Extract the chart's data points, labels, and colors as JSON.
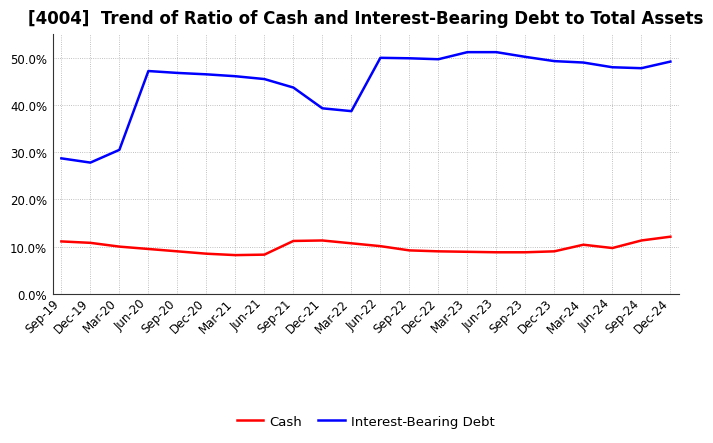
{
  "title": "[4004]  Trend of Ratio of Cash and Interest-Bearing Debt to Total Assets",
  "x_labels": [
    "Sep-19",
    "Dec-19",
    "Mar-20",
    "Jun-20",
    "Sep-20",
    "Dec-20",
    "Mar-21",
    "Jun-21",
    "Sep-21",
    "Dec-21",
    "Mar-22",
    "Jun-22",
    "Sep-22",
    "Dec-22",
    "Mar-23",
    "Jun-23",
    "Sep-23",
    "Dec-23",
    "Mar-24",
    "Jun-24",
    "Sep-24",
    "Dec-24"
  ],
  "cash": [
    0.111,
    0.108,
    0.1,
    0.095,
    0.09,
    0.085,
    0.082,
    0.083,
    0.112,
    0.113,
    0.107,
    0.101,
    0.092,
    0.09,
    0.089,
    0.088,
    0.088,
    0.09,
    0.104,
    0.097,
    0.113,
    0.121
  ],
  "ibd": [
    0.287,
    0.278,
    0.305,
    0.472,
    0.468,
    0.465,
    0.461,
    0.455,
    0.437,
    0.393,
    0.387,
    0.5,
    0.499,
    0.497,
    0.512,
    0.512,
    0.502,
    0.493,
    0.49,
    0.48,
    0.478,
    0.492
  ],
  "cash_color": "#ff0000",
  "ibd_color": "#0000ff",
  "bg_color": "#ffffff",
  "plot_bg_color": "#ffffff",
  "ylim": [
    0.0,
    0.55
  ],
  "yticks": [
    0.0,
    0.1,
    0.2,
    0.3,
    0.4,
    0.5
  ],
  "grid_color": "#999999",
  "legend_cash": "Cash",
  "legend_ibd": "Interest-Bearing Debt",
  "title_fontsize": 12,
  "axis_fontsize": 8.5,
  "legend_fontsize": 9.5,
  "line_width": 1.8
}
